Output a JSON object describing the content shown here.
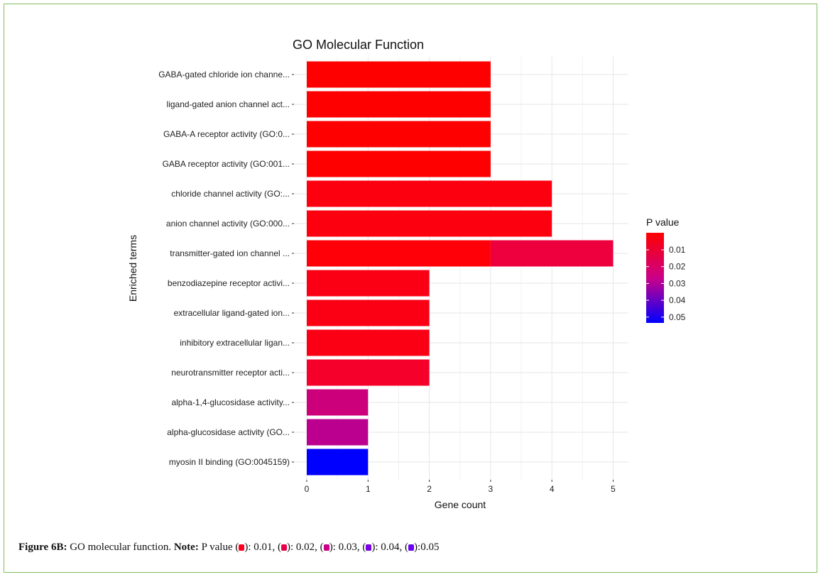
{
  "chart_data": {
    "type": "bar",
    "orientation": "horizontal",
    "title": "GO Molecular Function",
    "xlabel": "Gene count",
    "ylabel": "Enriched terms",
    "xlim": [
      0,
      5
    ],
    "xticks": [
      "0",
      "1",
      "2",
      "3",
      "4",
      "5"
    ],
    "categories": [
      "GABA-gated chloride ion channe...",
      "ligand-gated anion channel act...",
      "GABA-A receptor activity (GO:0...",
      "GABA receptor activity (GO:001...",
      "chloride channel activity (GO:...",
      "anion channel activity (GO:000...",
      "transmitter-gated ion channel ...",
      "benzodiazepine receptor activi...",
      "extracellular ligand-gated ion...",
      "inhibitory extracellular ligan...",
      "neurotransmitter receptor acti...",
      "alpha-1,4-glucosidase activity...",
      "alpha-glucosidase activity (GO...",
      "myosin II binding (GO:0045159)"
    ],
    "series": [
      {
        "name": "segment1",
        "values": [
          3,
          3,
          3,
          3,
          4,
          4,
          3,
          2,
          2,
          2,
          2,
          1,
          1,
          1
        ],
        "colors": [
          "#ff0000",
          "#ff0000",
          "#ff0000",
          "#ff0000",
          "#fd0010",
          "#fd0010",
          "#ff0008",
          "#fb0014",
          "#fb0014",
          "#fb0014",
          "#f5002a",
          "#cc007a",
          "#bb0090",
          "#0000ff"
        ]
      },
      {
        "name": "segment2",
        "values": [
          0,
          0,
          0,
          0,
          0,
          0,
          2,
          0,
          0,
          0,
          0,
          0,
          0,
          0
        ],
        "colors": [
          "",
          "",
          "",
          "",
          "",
          "",
          "#ee003f",
          "",
          "",
          "",
          "",
          "",
          "",
          ""
        ]
      }
    ],
    "legend": {
      "title": "P value",
      "ticks": [
        "0.01",
        "0.02",
        "0.03",
        "0.04",
        "0.05"
      ],
      "gradient": [
        "#ff0000",
        "#0000ff"
      ],
      "placement": "right"
    }
  },
  "caption": {
    "label": "Figure 6B:",
    "text": " GO molecular function. ",
    "note_label": "Note:",
    "note_prefix": " P value (",
    "items": [
      {
        "color": "#ff0022",
        "value": "): 0.01, ("
      },
      {
        "color": "#e8004a",
        "value": "): 0.02, ("
      },
      {
        "color": "#c8008a",
        "value": "): 0.03, ("
      },
      {
        "color": "#7a00e0",
        "value": "): 0.04, ("
      },
      {
        "color": "#6a00ee",
        "value": "):0.05"
      }
    ]
  }
}
